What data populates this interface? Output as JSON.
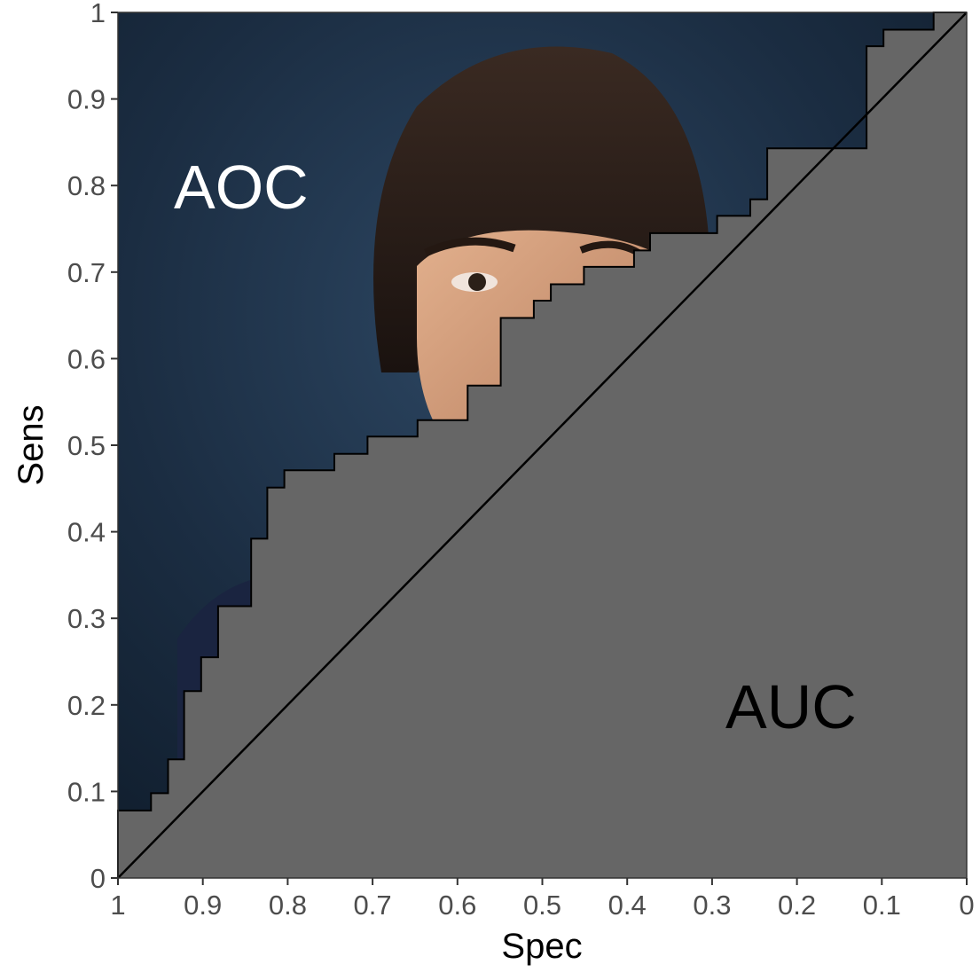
{
  "chart_data": {
    "type": "area",
    "xlabel": "Spec",
    "ylabel": "Sens",
    "x_reversed": true,
    "xlim": [
      1,
      0
    ],
    "ylim": [
      0,
      1
    ],
    "grid": false,
    "x_ticks": [
      1,
      0.9,
      0.8,
      0.7,
      0.6,
      0.5,
      0.4,
      0.3,
      0.2,
      0.1,
      0
    ],
    "x_tick_labels": [
      "1",
      "0.9",
      "0.8",
      "0.7",
      "0.6",
      "0.5",
      "0.4",
      "0.3",
      "0.2",
      "0.1",
      "0"
    ],
    "y_ticks": [
      0,
      0.1,
      0.2,
      0.3,
      0.4,
      0.5,
      0.6,
      0.7,
      0.8,
      0.9,
      1
    ],
    "y_tick_labels": [
      "0",
      "0.1",
      "0.2",
      "0.3",
      "0.4",
      "0.5",
      "0.6",
      "0.7",
      "0.8",
      "0.9",
      "1"
    ],
    "annotations": {
      "upper_region": "AOC",
      "lower_region": "AUC"
    },
    "reference_line": {
      "from": [
        1,
        0
      ],
      "to": [
        0,
        1
      ]
    },
    "colors": {
      "auc_fill": "#666666",
      "aoc_background": "#1c2c3e",
      "reference_line": "#000000",
      "aoc_text": "#ffffff",
      "auc_text": "#000000"
    },
    "series": [
      {
        "spec": [
          1.0,
          1.0,
          0.961,
          0.961,
          0.941,
          0.941,
          0.922,
          0.922,
          0.902,
          0.902,
          0.882,
          0.882,
          0.843,
          0.843,
          0.824,
          0.824,
          0.804,
          0.804,
          0.745,
          0.745,
          0.706,
          0.706,
          0.647,
          0.647,
          0.588,
          0.588,
          0.549,
          0.549,
          0.51,
          0.51,
          0.49,
          0.49,
          0.451,
          0.451,
          0.392,
          0.392,
          0.373,
          0.373,
          0.294,
          0.294,
          0.255,
          0.255,
          0.235,
          0.235,
          0.118,
          0.118,
          0.098,
          0.098,
          0.039,
          0.039,
          0.02,
          0.02,
          0.0
        ],
        "sens": [
          0.0,
          0.078,
          0.078,
          0.098,
          0.098,
          0.137,
          0.137,
          0.216,
          0.216,
          0.255,
          0.255,
          0.314,
          0.314,
          0.392,
          0.392,
          0.451,
          0.451,
          0.471,
          0.471,
          0.49,
          0.49,
          0.51,
          0.51,
          0.529,
          0.529,
          0.569,
          0.569,
          0.647,
          0.647,
          0.667,
          0.667,
          0.686,
          0.686,
          0.706,
          0.706,
          0.725,
          0.725,
          0.745,
          0.745,
          0.765,
          0.765,
          0.784,
          0.784,
          0.843,
          0.843,
          0.961,
          0.961,
          0.98,
          0.98,
          1.0,
          1.0,
          1.0,
          1.0
        ]
      }
    ]
  }
}
